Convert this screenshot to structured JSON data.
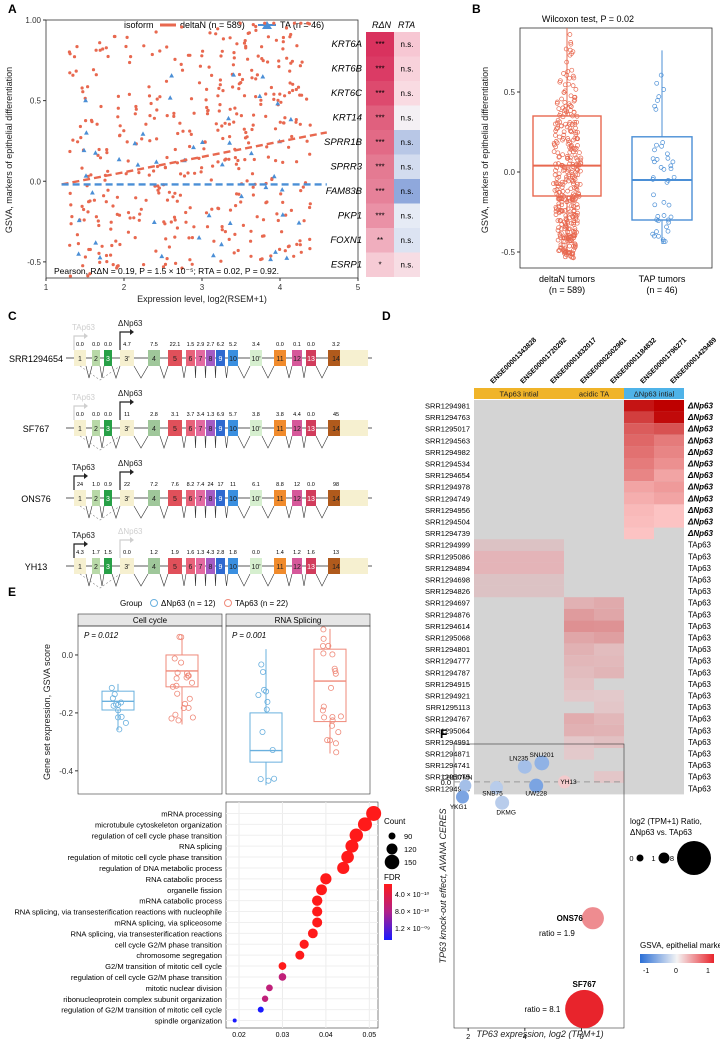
{
  "panels": {
    "A": {
      "letter": "A",
      "legend": {
        "title": "isoform",
        "deltaN": "deltaN (n = 589)",
        "TA": "TA (n = 46)"
      },
      "colors": {
        "deltaN": "#e8684f",
        "TA": "#4b8fd6"
      },
      "ylabel": "GSVA, markers of epithelial differentiation",
      "xlabel": "Expression level, log2(RSEM+1)",
      "stats": "Pearson, RΔN = 0.19, P = 1.5 × 10⁻⁵; RTA = 0.02, P = 0.92.",
      "xticks": [
        "1",
        "2",
        "3",
        "4",
        "5"
      ],
      "yticks": [
        "1.00",
        "0.5",
        "0.0",
        "-0.5"
      ],
      "heat_headers": {
        "rdn": "RΔN",
        "rta": "RTA"
      },
      "genes": [
        {
          "name": "KRT6A",
          "dn": "***",
          "ta": "n.s.",
          "dn_c": "#d9325e",
          "ta_c": "#f7c7d3"
        },
        {
          "name": "KRT6B",
          "dn": "***",
          "ta": "n.s.",
          "dn_c": "#db3b65",
          "ta_c": "#f8d2db"
        },
        {
          "name": "KRT6C",
          "dn": "***",
          "ta": "n.s.",
          "dn_c": "#dd4a6e",
          "ta_c": "#f9dbe2"
        },
        {
          "name": "KRT14",
          "dn": "***",
          "ta": "n.s.",
          "dn_c": "#e0607e",
          "ta_c": "#f4f0f4"
        },
        {
          "name": "SPRR1B",
          "dn": "***",
          "ta": "n.s.",
          "dn_c": "#e26a86",
          "ta_c": "#b8c7e6"
        },
        {
          "name": "SPRR3",
          "dn": "***",
          "ta": "n.s.",
          "dn_c": "#e47a92",
          "ta_c": "#d3dcef"
        },
        {
          "name": "FAM83B",
          "dn": "***",
          "ta": "n.s.",
          "dn_c": "#e68199",
          "ta_c": "#8fa8dc"
        },
        {
          "name": "PKP1",
          "dn": "***",
          "ta": "n.s.",
          "dn_c": "#ea91a6",
          "ta_c": "#e6ebf5"
        },
        {
          "name": "FOXN1",
          "dn": "**",
          "ta": "n.s.",
          "dn_c": "#f0aebe",
          "ta_c": "#dce3f2"
        },
        {
          "name": "ESRP1",
          "dn": "*",
          "ta": "n.s.",
          "dn_c": "#f6cbd5",
          "ta_c": "#f7dde4"
        }
      ]
    },
    "B": {
      "letter": "B",
      "title": "Wilcoxon test, P = 0.02",
      "ylabel": "GSVA, markers of epithelial differentiation",
      "yticks": [
        "0.5",
        "0.0",
        "-0.5"
      ],
      "groups": [
        {
          "name": "deltaN tumors",
          "n": "(n = 589)"
        },
        {
          "name": "TAP tumors",
          "n": "(n = 46)"
        }
      ]
    },
    "C": {
      "letter": "C",
      "samples": [
        {
          "id": "SRR1294654",
          "ta": "TAp63",
          "dn": "ΔNp63",
          "ta_faded": true,
          "dn_faded": false
        },
        {
          "id": "SF767",
          "ta": "TAp63",
          "dn": "ΔNp63",
          "ta_faded": true,
          "dn_faded": false
        },
        {
          "id": "ONS76",
          "ta": "TAp63",
          "dn": "ΔNp63",
          "ta_faded": false,
          "dn_faded": false
        },
        {
          "id": "YH13",
          "ta": "TAp63",
          "dn": "ΔNp63",
          "ta_faded": false,
          "dn_faded": true
        }
      ],
      "exon_labels": [
        "1",
        "2",
        "3",
        "3'",
        "4",
        "5",
        "6",
        "7",
        "8",
        "9",
        "10",
        "10'",
        "11",
        "12",
        "13",
        "14"
      ],
      "values": [
        [
          "0.0",
          "0.0",
          "0.0",
          "4.7",
          "7.5",
          "22.1",
          "1.5",
          "2.9",
          "2.7",
          "6.2",
          "5.2",
          "3.4",
          "0.0",
          "0.1",
          "0.0",
          "3.2"
        ],
        [
          "0.0",
          "0.0",
          "0.0",
          "11",
          "2.8",
          "3.1",
          "3.7",
          "3.4",
          "1.3",
          "6.9",
          "5.7",
          "3.8",
          "3.8",
          "4.4",
          "0.0",
          "45"
        ],
        [
          "24",
          "1.0",
          "0.9",
          "22",
          "7.2",
          "7.6",
          "8.2",
          "7.4",
          "24",
          "17",
          "11",
          "6.1",
          "8.8",
          "12",
          "0.0",
          "98"
        ],
        [
          "4.3",
          "1.7",
          "1.5",
          "0.0",
          "1.2",
          "1.9",
          "1.6",
          "1.3",
          "4.3",
          "2.8",
          "1.8",
          "0.0",
          "1.4",
          "1.2",
          "1.6",
          "13"
        ]
      ]
    },
    "D": {
      "letter": "D",
      "columns": [
        "ENSE00001343828",
        "ENSE00001720292",
        "ENSE00001832017",
        "ENSE00002502961",
        "ENSE00001184832",
        "ENSE00001796271",
        "ENSE00001429489"
      ],
      "groups": [
        {
          "label": "TAp63 intial",
          "color": "#f0b429"
        },
        {
          "label": "acidic TA",
          "color": "#f0b429"
        },
        {
          "label": "ΔNp63 intial",
          "color": "#4fb3e8"
        }
      ],
      "rows": [
        {
          "id": "SRR1294981",
          "label": "ΔNp63"
        },
        {
          "id": "SRR1294763",
          "label": "ΔNp63"
        },
        {
          "id": "SRR1295017",
          "label": "ΔNp63"
        },
        {
          "id": "SRR1294563",
          "label": "ΔNp63"
        },
        {
          "id": "SRR1294982",
          "label": "ΔNp63"
        },
        {
          "id": "SRR1294534",
          "label": "ΔNp63"
        },
        {
          "id": "SRR1294654",
          "label": "ΔNp63"
        },
        {
          "id": "SRR1294978",
          "label": "ΔNp63"
        },
        {
          "id": "SRR1294749",
          "label": "ΔNp63"
        },
        {
          "id": "SRR1294956",
          "label": "ΔNp63"
        },
        {
          "id": "SRR1294504",
          "label": "ΔNp63"
        },
        {
          "id": "SRR1294739",
          "label": "ΔNp63"
        },
        {
          "id": "SRR1294999",
          "label": "TAp63"
        },
        {
          "id": "SRR1295086",
          "label": "TAp63"
        },
        {
          "id": "SRR1294894",
          "label": "TAp63"
        },
        {
          "id": "SRR1294698",
          "label": "TAp63"
        },
        {
          "id": "SRR1294826",
          "label": "TAp63"
        },
        {
          "id": "SRR1294697",
          "label": "TAp63"
        },
        {
          "id": "SRR1294876",
          "label": "TAp63"
        },
        {
          "id": "SRR1294614",
          "label": "TAp63"
        },
        {
          "id": "SRR1295068",
          "label": "TAp63"
        },
        {
          "id": "SRR1294801",
          "label": "TAp63"
        },
        {
          "id": "SRR1294777",
          "label": "TAp63"
        },
        {
          "id": "SRR1294787",
          "label": "TAp63"
        },
        {
          "id": "SRR1294915",
          "label": "TAp63"
        },
        {
          "id": "SRR1294921",
          "label": "TAp63"
        },
        {
          "id": "SRR1295113",
          "label": "TAp63"
        },
        {
          "id": "SRR1294767",
          "label": "TAp63"
        },
        {
          "id": "SRR1295064",
          "label": "TAp63"
        },
        {
          "id": "SRR1294991",
          "label": "TAp63"
        },
        {
          "id": "SRR1294871",
          "label": "TAp63"
        },
        {
          "id": "SRR1294741",
          "label": "TAp63"
        },
        {
          "id": "SRR1295075",
          "label": "TAp63"
        },
        {
          "id": "SRR1294944",
          "label": "TAp63"
        }
      ]
    },
    "E": {
      "letter": "E",
      "legend_title": "Group",
      "legend_dn": "ΔNp63 (n = 12)",
      "legend_ta": "TAp63 (n = 22)",
      "facets": [
        {
          "title": "Cell cycle",
          "p": "P = 0.012"
        },
        {
          "title": "RNA Splicing",
          "p": "P = 0.001"
        }
      ],
      "ylabel": "Gene set expression, GSVA score",
      "yticks": [
        "0.0",
        "-0.2",
        "-0.4"
      ],
      "terms": [
        "mRNA processing",
        "microtubule cytoskeleton organization",
        "regulation of cell cycle phase transition",
        "RNA splicing",
        "regulation of mitotic cell cycle phase transition",
        "regulation of DNA metabolic process",
        "RNA catabolic process",
        "organelle fission",
        "mRNA catabolic process",
        "RNA splicing, via transesterification reactions with nucleophile",
        "mRNA splicing, via spliceosome",
        "RNA splicing, via transesterification reactions",
        "cell cycle G2/M phase transition",
        "chromosome segregation",
        "G2/M transition of mitotic cell cycle",
        "regulation of cell cycle G2/M phase transition",
        "mitotic nuclear division",
        "ribonucleoprotein complex subunit organization",
        "regulation of G2/M transition of mitotic cell cycle",
        "spindle organization"
      ],
      "xticks": [
        "0.02",
        "0.03",
        "0.04",
        "0.05"
      ],
      "count_title": "Count",
      "count_values": [
        "90",
        "120",
        "150"
      ],
      "fdr_title": "FDR",
      "fdr_values": [
        "4.0 × 10⁻¹⁰",
        "8.0 × 10⁻¹⁰",
        "1.2 × 10⁻⁰⁹"
      ]
    },
    "F": {
      "letter": "F",
      "ylabel": "TP63 knock-out effect, AVANA CERES",
      "xlabel": "TP63 expression, log2 (TPM+1)",
      "xticks": [
        "2",
        "4",
        "6"
      ],
      "size_title": "log2 (TPM+1) Ratio, ΔNp63 vs. TAp63",
      "size_values": [
        "0",
        "1",
        "8"
      ],
      "color_title": "GSVA, epithelial markers",
      "color_values": [
        "-1",
        "0",
        "1"
      ],
      "cell_lines": [
        "CH157MN",
        "LN235",
        "SNU201",
        "SNB75",
        "YH13",
        "YKG1",
        "DKMG",
        "UW228"
      ],
      "ons76": {
        "name": "ONS76",
        "ratio": "ratio = 1.9"
      },
      "sf767": {
        "name": "SF767",
        "ratio": "ratio = 8.1"
      }
    }
  },
  "chart_data": [
    {
      "type": "scatter",
      "panel": "A",
      "xlabel": "Expression level, log2(RSEM+1)",
      "ylabel": "GSVA, markers of epithelial differentiation",
      "xlim": [
        1,
        5
      ],
      "ylim": [
        -0.6,
        1.0
      ],
      "series": [
        {
          "name": "deltaN (n = 589)",
          "fit": {
            "intercept": -0.02,
            "slope": 0.095
          }
        },
        {
          "name": "TA (n = 46)",
          "fit": {
            "intercept": -0.02,
            "slope": 0.0
          }
        }
      ]
    },
    {
      "type": "box",
      "panel": "B",
      "ylim": [
        -0.6,
        0.9
      ],
      "categories": [
        "deltaN tumors",
        "TAP tumors"
      ],
      "median": [
        0.04,
        -0.05
      ],
      "q1": [
        -0.15,
        -0.3
      ],
      "q3": [
        0.35,
        0.22
      ],
      "min": [
        -0.54,
        -0.45
      ],
      "max": [
        0.9,
        0.76
      ]
    },
    {
      "type": "box",
      "panel": "E",
      "ylim": [
        -0.48,
        0.1
      ],
      "facets": [
        "Cell cycle",
        "RNA Splicing"
      ],
      "groups": [
        "ΔNp63 (n = 12)",
        "TAp63 (n = 22)"
      ],
      "median": [
        [
          -0.16,
          -0.055
        ],
        [
          -0.33,
          -0.09
        ]
      ],
      "q1": [
        [
          -0.19,
          -0.11
        ],
        [
          -0.37,
          -0.23
        ]
      ],
      "q3": [
        [
          -0.125,
          0.0
        ],
        [
          -0.2,
          0.02
        ]
      ],
      "min": [
        [
          -0.26,
          -0.24
        ],
        [
          -0.45,
          -0.34
        ]
      ],
      "max": [
        [
          -0.1,
          0.07
        ],
        [
          0.02,
          0.09
        ]
      ]
    },
    {
      "type": "scatter",
      "panel": "E-dot",
      "xlabel": "GeneRatio",
      "xlim": [
        0.017,
        0.052
      ],
      "y": [
        "mRNA processing",
        "microtubule cytoskeleton organization",
        "regulation of cell cycle phase transition",
        "RNA splicing",
        "regulation of mitotic cell cycle phase transition",
        "regulation of DNA metabolic process",
        "RNA catabolic process",
        "organelle fission",
        "mRNA catabolic process",
        "RNA splicing, via transesterification reactions with nucleophile",
        "mRNA splicing, via spliceosome",
        "RNA splicing, via transesterification reactions",
        "cell cycle G2/M phase transition",
        "chromosome segregation",
        "G2/M transition of mitotic cell cycle",
        "regulation of cell cycle G2/M phase transition",
        "mitotic nuclear division",
        "ribonucleoprotein complex subunit organization",
        "regulation of G2/M transition of mitotic cell cycle",
        "spindle organization"
      ],
      "x": [
        0.051,
        0.049,
        0.047,
        0.046,
        0.045,
        0.044,
        0.04,
        0.039,
        0.038,
        0.038,
        0.038,
        0.037,
        0.035,
        0.034,
        0.03,
        0.03,
        0.027,
        0.026,
        0.025,
        0.019
      ],
      "count": [
        160,
        150,
        145,
        142,
        138,
        135,
        125,
        122,
        118,
        116,
        115,
        113,
        108,
        105,
        95,
        93,
        85,
        82,
        78,
        60
      ]
    },
    {
      "type": "scatter",
      "panel": "F",
      "xlabel": "TP63 expression, log2 (TPM+1)",
      "ylabel": "TP63 knock-out effect, AVANA CERES",
      "xlim": [
        1.5,
        7.5
      ],
      "ylim": [
        -1.3,
        0.2
      ],
      "points": [
        {
          "name": "CH157MN",
          "x": 1.9,
          "y": -0.02,
          "ratio": 0.2,
          "gsva": -0.4
        },
        {
          "name": "YKG1",
          "x": 1.8,
          "y": -0.08,
          "ratio": 0.3,
          "gsva": -0.6
        },
        {
          "name": "SNB75",
          "x": 3.0,
          "y": -0.03,
          "ratio": 0.3,
          "gsva": -0.3
        },
        {
          "name": "DKMG",
          "x": 3.2,
          "y": -0.11,
          "ratio": 0.4,
          "gsva": -0.3
        },
        {
          "name": "LN235",
          "x": 4.0,
          "y": 0.08,
          "ratio": 0.4,
          "gsva": -0.4
        },
        {
          "name": "SNU201",
          "x": 4.6,
          "y": 0.1,
          "ratio": 0.5,
          "gsva": -0.5
        },
        {
          "name": "UW228",
          "x": 4.4,
          "y": -0.02,
          "ratio": 0.4,
          "gsva": -0.6
        },
        {
          "name": "YH13",
          "x": 5.4,
          "y": 0.0,
          "ratio": 0.3,
          "gsva": 0.2
        },
        {
          "name": "ONS76",
          "x": 6.4,
          "y": -0.72,
          "ratio": 1.9,
          "gsva": 0.5
        },
        {
          "name": "SF767",
          "x": 6.1,
          "y": -1.2,
          "ratio": 8.1,
          "gsva": 1.0
        }
      ]
    }
  ]
}
